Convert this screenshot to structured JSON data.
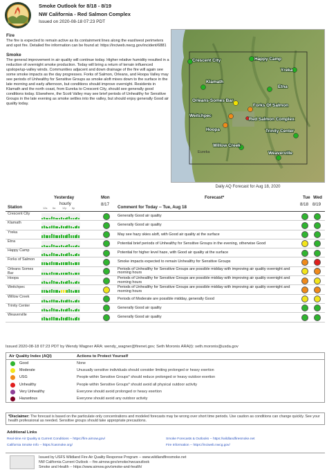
{
  "header": {
    "title": "Smoke Outlook for 8/18 - 8/19",
    "subtitle": "NW California - Red Salmon Complex",
    "issued": "Issued on 2020-08-18 07:23 PDT"
  },
  "narrative": {
    "fire_heading": "Fire",
    "fire_text": "The fire is expected to remain active as its containment lines along the east/west perimeters and spot fire. Detailed fire information can be found at: https://inciweb.nwcg.gov/incident/6881",
    "smoke_heading": "Smoke",
    "smoke_text": "The general improvement in air quality will continue today. Higher relative humidity resulted in a reduction of overnight smoke production. Today will bring a return of terrain influenced upslope/up-valley winds. Communities adjacent and down drainage of the fire will again see some smoke impacts as the day progresses. Forks of Salmon, Orleans, and Hoopa Valley may see periods of Unhealthy for Sensitive Groups as smoke aloft mixes down to the surface in the late morning and early afternoon, but conditions should improve overnight. Residents in Klamath and the north coast, from Eureka to Crescent City, should see generally good conditions today. Elsewhere, the Scott Valley may see brief periods of Unhealthy for Sensitive Groups in the late evening as smoke settles into the valley, but should enjoy generally Good air quality today."
  },
  "map": {
    "caption": "Daily AQ Forecast for Aug 18, 2020",
    "labels": [
      "Crescent City",
      "Happy Camp",
      "Yreka",
      "Klamath",
      "Etna",
      "Orleans-Somes Bar",
      "Forks Of Salmon",
      "Weitchpec",
      "Red Salmon Complex",
      "Hoopa",
      "Trinity Center",
      "Willow Creek",
      "Eureka",
      "Weaverville"
    ],
    "colors": {
      "good": "#22b022",
      "moderate": "#f2e200",
      "usg": "#f08a1a",
      "fire": "#d42020"
    }
  },
  "table": {
    "headers": {
      "yesterday": "Yesterday",
      "hourly": "hourly",
      "station": "Station",
      "mon": "Mon",
      "mon_date": "8/17",
      "forecast": "Forecast*",
      "comment": "Comment for Today -- Tue, Aug 18",
      "tue": "Tue",
      "wed": "Wed",
      "tue_date": "8/18",
      "wed_date": "8/19",
      "spark_ticks": [
        "12a",
        "6a",
        "12p",
        "6p"
      ]
    },
    "rows": [
      {
        "station": "Crescent City",
        "mon": "good",
        "comment": "Generally Good air quality",
        "tue": "good",
        "wed": "good"
      },
      {
        "station": "Klamath",
        "mon": "good",
        "comment": "Generally Good air quality",
        "tue": "good",
        "wed": "good"
      },
      {
        "station": "Yreka",
        "mon": "good",
        "comment": "May see hazy skies aloft, with Good air quality at the surface",
        "tue": "good",
        "wed": "good"
      },
      {
        "station": "Etna",
        "mon": "good",
        "comment": "Potential brief periods of Unhealthy for Sensitive Groups in the evening, otherwise Good",
        "tue": "moderate",
        "wed": "good"
      },
      {
        "station": "Happy Camp",
        "mon": "good",
        "comment": "Potential for higher level haze, with Good air quality at the surface",
        "tue": "good",
        "wed": "good"
      },
      {
        "station": "Forks of Salmon",
        "mon": "good",
        "comment": "Smoke impacts expected to remain Unhealthy for Sensitive Groups",
        "tue": "usg",
        "wed": "unhealthy"
      },
      {
        "station": "Orleans Somes Bar",
        "mon": "good",
        "comment": "Periods of Unhealthy for Sensitive Groups are possible midday with improving air quality overnight and morning hours",
        "tue": "moderate",
        "wed": "usg"
      },
      {
        "station": "Hoopa",
        "mon": "good",
        "comment": "Periods of Unhealthy for Sensitive Groups are possible midday with improving air quality overnight and morning hours",
        "tue": "usg",
        "wed": "moderate"
      },
      {
        "station": "Weitchpec",
        "mon": "moderate",
        "comment": "Periods of Unhealthy for Sensitive Groups are possible midday with improving air quality overnight and morning hours",
        "tue": "usg",
        "wed": "usg"
      },
      {
        "station": "Willow Creek",
        "mon": "good",
        "comment": "Periods of Moderate are possible midday, generally Good",
        "tue": "moderate",
        "wed": "moderate"
      },
      {
        "station": "Trinity Center",
        "mon": "good",
        "comment": "Generally Good air quality",
        "tue": "good",
        "wed": "good"
      },
      {
        "station": "Weaverville",
        "mon": "good",
        "comment": "Generally Good air quality",
        "tue": "good",
        "wed": "good"
      }
    ],
    "level_colors": {
      "good": "#2fb52f",
      "moderate": "#f3e51b",
      "usg": "#f08a1a",
      "unhealthy": "#e01e1e"
    }
  },
  "issued_by": "Issued 2020-08-18 07:23 PDT by Wendy Wagner ARA: wendy_wagner@firenet.gov; Seth Moronis ARA(t): seth.moronis@usda.gov",
  "aqi_legend": {
    "col1": "Air Quality Index (AQI)",
    "col2": "Actions to Protect Yourself",
    "rows": [
      {
        "level": "Good",
        "color": "#2fb52f",
        "action": "None"
      },
      {
        "level": "Moderate",
        "color": "#f3e51b",
        "action": "Unusually sensitive individuals should consider limiting prolonged or heavy exertion"
      },
      {
        "level": "USG",
        "color": "#f08a1a",
        "action": "People within Sensitive Groups* should reduce prolonged or heavy outdoor exertion"
      },
      {
        "level": "Unhealthy",
        "color": "#e01e1e",
        "action": "People within Sensitive Groups* should avoid all physical outdoor activity"
      },
      {
        "level": "Very Unhealthy",
        "color": "#8f3f97",
        "action": "Everyone should avoid prolonged or heavy exertion"
      },
      {
        "level": "Hazardous",
        "color": "#7e0023",
        "action": "Everyone should avoid any outdoor activity"
      }
    ]
  },
  "disclaimer": {
    "label": "*Disclaimer:",
    "text": "The forecast is based on the particulate only concentrations and modeled forecasts may be wrong over short time periods. Use caution as conditions can change quickly. See your health professional as needed. Sensitive groups should take appropriate precautions."
  },
  "additional": {
    "heading": "Additional Links",
    "links_left": [
      "Real-time Air Quality & Current Conditions -- https://fire.airnow.gov/",
      "California Smoke Info -- https://casmoke.org/"
    ],
    "links_right": [
      "Smoke Forecasts & Outlooks -- https://wildlandfiresmoke.net",
      "Fire Information -- https://inciweb.nwcg.gov/"
    ]
  },
  "footer": {
    "line1": "Issued by USFS Wildland Fire Air Quality Response Program -- www.wildlandfiresmoke.net",
    "line2": "NW California Current Outlook -- fire.airnow.gov/smoke/nwcaoutlook",
    "line3": "Smoke and Health -- https://www.airnow.gov/smoke-and-health/"
  }
}
